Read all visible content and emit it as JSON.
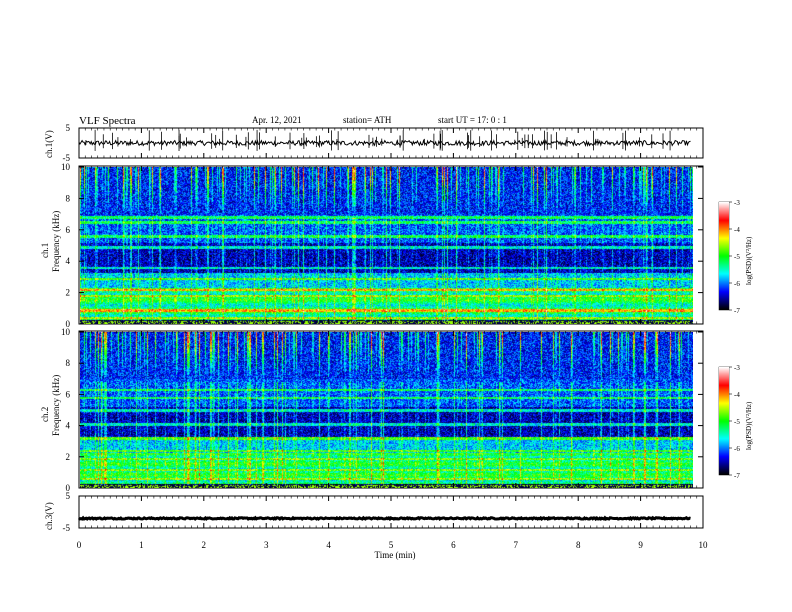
{
  "header": {
    "title": "VLF  Spectra",
    "date": "Apr. 12, 2021",
    "station": "station= ATH",
    "start": "start  UT  =    17: 0   : 1"
  },
  "chart_data": [
    {
      "type": "line",
      "name": "ch1-waveform",
      "ylabel": "ch.1(V)",
      "ylim": [
        -5,
        5
      ],
      "yticks": [
        5,
        -5
      ],
      "x_range_min": [
        0,
        9.8
      ],
      "baseline_level": 0,
      "color": "#000000"
    },
    {
      "type": "heatmap",
      "name": "ch1-spectrogram",
      "ylabel_line1": "ch.1",
      "ylabel_line2": "Frequency  (kHz)",
      "ylim": [
        0,
        10
      ],
      "yticks": [
        "0",
        "2",
        "4",
        "6",
        "8",
        "10"
      ],
      "colorbar": {
        "label": "log(PSD)(V²/Hz)",
        "ticks": [
          "-3",
          "-4",
          "-5",
          "-6",
          "-7"
        ],
        "range": [
          -7,
          -3
        ]
      },
      "bands_khz": [
        0.4,
        0.9,
        1.8,
        2.2,
        2.9,
        3.6,
        4.9,
        5.6,
        6.5,
        6.8
      ]
    },
    {
      "type": "heatmap",
      "name": "ch2-spectrogram",
      "ylabel_line1": "ch.2",
      "ylabel_line2": "Frequency  (kHz)",
      "ylim": [
        0,
        10
      ],
      "yticks": [
        "0",
        "2",
        "4",
        "6",
        "8",
        "10"
      ],
      "colorbar": {
        "label": "log(PSD)(V²/Hz)",
        "ticks": [
          "-3",
          "-4",
          "-5",
          "-6",
          "-7"
        ],
        "range": [
          -7,
          -3
        ]
      },
      "bands_khz": [
        0.6,
        1.2,
        1.9,
        2.4,
        3.2,
        4.1,
        5.0,
        5.8,
        6.3
      ]
    },
    {
      "type": "line",
      "name": "ch3-waveform",
      "ylabel": "ch.3(V)",
      "ylim": [
        -5,
        5
      ],
      "yticks": [
        5,
        -5
      ],
      "x_range_min": [
        0,
        9.8
      ],
      "baseline_level": -2,
      "color": "#000000"
    }
  ],
  "xaxis": {
    "label": "Time  (min)",
    "ticks": [
      "0",
      "1",
      "2",
      "3",
      "4",
      "5",
      "6",
      "7",
      "8",
      "9",
      "10"
    ],
    "range": [
      0,
      10
    ]
  },
  "colorscale": [
    "#000000",
    "#0000ff",
    "#00ffff",
    "#00ff00",
    "#ffff00",
    "#ff0000",
    "#ffffff"
  ]
}
